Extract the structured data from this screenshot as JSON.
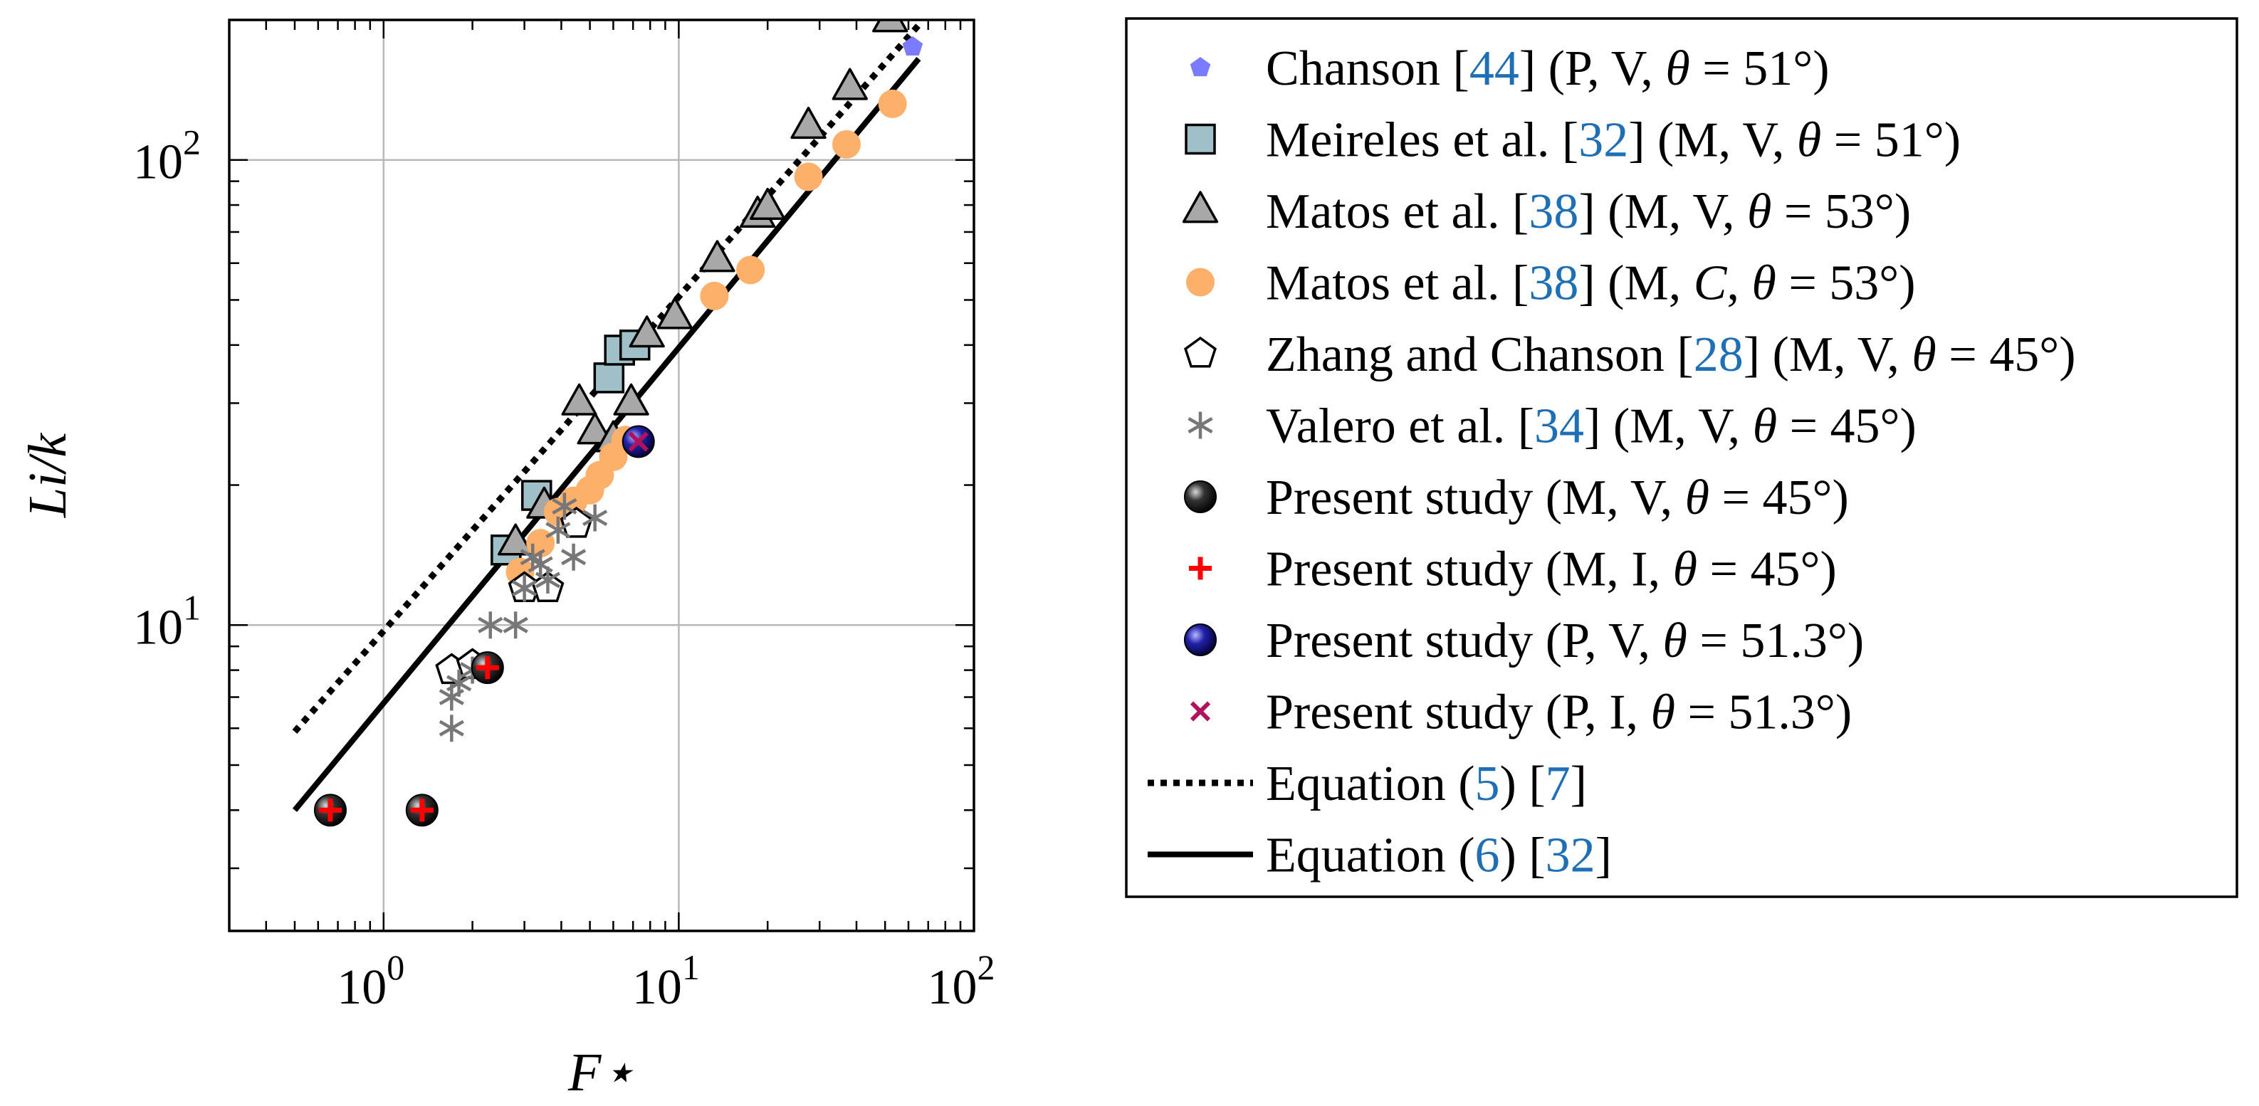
{
  "chart_data": {
    "type": "scatter",
    "x_scale": "log",
    "y_scale": "log",
    "xlim": [
      0.3,
      100
    ],
    "ylim": [
      2.2,
      200
    ],
    "grid": true,
    "legend_position": "right-outside",
    "xlabel": "F⋆",
    "ylabel": "Li/k",
    "x_ticks": [
      {
        "base": "10",
        "exp": "0",
        "value": 1
      },
      {
        "base": "10",
        "exp": "1",
        "value": 10
      },
      {
        "base": "10",
        "exp": "2",
        "value": 100
      }
    ],
    "y_ticks": [
      {
        "base": "10",
        "exp": "1",
        "value": 10
      },
      {
        "base": "10",
        "exp": "2",
        "value": 100
      }
    ],
    "series": [
      {
        "id": "chanson44",
        "marker": "pentagon-filled",
        "color": "#7b7bff",
        "legend": [
          {
            "t": "Chanson ["
          },
          {
            "t": "44",
            "ref": true
          },
          {
            "t": "] (P, V, "
          },
          {
            "t": "θ",
            "i": true
          },
          {
            "t": " = 51°)"
          }
        ],
        "points": [
          [
            62,
            175
          ]
        ]
      },
      {
        "id": "meireles32",
        "marker": "square",
        "color": "#9fc0c8",
        "legend": [
          {
            "t": "Meireles et al. ["
          },
          {
            "t": "32",
            "ref": true
          },
          {
            "t": "] (M, V, "
          },
          {
            "t": "θ",
            "i": true
          },
          {
            "t": " = 51°)"
          }
        ],
        "points": [
          [
            2.6,
            14.5
          ],
          [
            3.3,
            19
          ],
          [
            5.8,
            34
          ],
          [
            6.3,
            39
          ],
          [
            7.1,
            40
          ]
        ]
      },
      {
        "id": "matos38v",
        "marker": "triangle",
        "color": "#a8a8a8",
        "legend": [
          {
            "t": "Matos et al. ["
          },
          {
            "t": "38",
            "ref": true
          },
          {
            "t": "] (M, V, "
          },
          {
            "t": "θ",
            "i": true
          },
          {
            "t": " = 53°)"
          }
        ],
        "points": [
          [
            2.8,
            15
          ],
          [
            3.5,
            18
          ],
          [
            4.6,
            30
          ],
          [
            5.2,
            26
          ],
          [
            6.0,
            25
          ],
          [
            6.9,
            30
          ],
          [
            7.8,
            42
          ],
          [
            9.7,
            46
          ],
          [
            13.5,
            61
          ],
          [
            18.5,
            76
          ],
          [
            20,
            79
          ],
          [
            27.5,
            118
          ],
          [
            38,
            143
          ],
          [
            52,
            200
          ]
        ]
      },
      {
        "id": "matos38c",
        "marker": "circle-filled",
        "color": "#fdb06a",
        "legend": [
          {
            "t": "Matos et al. ["
          },
          {
            "t": "38",
            "ref": true
          },
          {
            "t": "] (M, "
          },
          {
            "t": "C",
            "i": true
          },
          {
            "t": ", "
          },
          {
            "t": "θ",
            "i": true
          },
          {
            "t": " = 53°)"
          }
        ],
        "points": [
          [
            2.9,
            13
          ],
          [
            3.4,
            15
          ],
          [
            3.9,
            17.5
          ],
          [
            4.4,
            18.5
          ],
          [
            5.0,
            19.5
          ],
          [
            5.4,
            21
          ],
          [
            6.0,
            23
          ],
          [
            6.6,
            25
          ],
          [
            13.2,
            51
          ],
          [
            17.5,
            58
          ],
          [
            27.5,
            92
          ],
          [
            37,
            108
          ],
          [
            53,
            132
          ]
        ]
      },
      {
        "id": "zhang28",
        "marker": "pentagon-open",
        "color": "#000000",
        "legend": [
          {
            "t": "Zhang and Chanson ["
          },
          {
            "t": "28",
            "ref": true
          },
          {
            "t": "] (M, V, "
          },
          {
            "t": "θ",
            "i": true
          },
          {
            "t": " = 45°)"
          }
        ],
        "points": [
          [
            1.7,
            8
          ],
          [
            2.0,
            8.2
          ],
          [
            3.0,
            12
          ],
          [
            3.6,
            12
          ],
          [
            4.5,
            16.5
          ]
        ]
      },
      {
        "id": "valero34",
        "marker": "asterisk",
        "color": "#777777",
        "legend": [
          {
            "t": "Valero et al. ["
          },
          {
            "t": "34",
            "ref": true
          },
          {
            "t": "] (M, V, "
          },
          {
            "t": "θ",
            "i": true
          },
          {
            "t": " = 45°)"
          }
        ],
        "points": [
          [
            1.7,
            6.0
          ],
          [
            1.7,
            7.0
          ],
          [
            1.8,
            7.5
          ],
          [
            2.0,
            8.0
          ],
          [
            2.3,
            10
          ],
          [
            2.8,
            10
          ],
          [
            3.0,
            12
          ],
          [
            3.2,
            14
          ],
          [
            3.4,
            13.5
          ],
          [
            3.6,
            12.5
          ],
          [
            3.9,
            16
          ],
          [
            4.1,
            18
          ],
          [
            4.4,
            14
          ],
          [
            5.2,
            17
          ]
        ]
      },
      {
        "id": "present_mv",
        "marker": "ball-black",
        "color": "#000000",
        "legend": [
          {
            "t": "Present study (M, V, "
          },
          {
            "t": "θ",
            "i": true
          },
          {
            "t": " = 45°)"
          }
        ],
        "points": [
          [
            0.66,
            4.0
          ],
          [
            1.35,
            4.0
          ],
          [
            2.25,
            8.1
          ]
        ]
      },
      {
        "id": "present_mi",
        "marker": "plus",
        "color": "#ff0000",
        "legend": [
          {
            "t": "Present study (M, I, "
          },
          {
            "t": "θ",
            "i": true
          },
          {
            "t": " = 45°)"
          }
        ],
        "points": [
          [
            0.66,
            4.0
          ],
          [
            1.35,
            4.0
          ],
          [
            2.25,
            8.1
          ]
        ]
      },
      {
        "id": "present_pv",
        "marker": "ball-blue",
        "color": "#1a1a9a",
        "legend": [
          {
            "t": "Present study (P, V, "
          },
          {
            "t": "θ",
            "i": true
          },
          {
            "t": " = 51.3°)"
          }
        ],
        "points": [
          [
            7.3,
            24.8
          ]
        ]
      },
      {
        "id": "present_pi",
        "marker": "cross",
        "color": "#b0135c",
        "legend": [
          {
            "t": "Present study (P, I, "
          },
          {
            "t": "θ",
            "i": true
          },
          {
            "t": " = 51.3°)"
          }
        ],
        "points": [
          [
            7.3,
            24.8
          ]
        ]
      }
    ],
    "lines": [
      {
        "id": "eq5",
        "style": "dotted",
        "color": "#000000",
        "legend": [
          {
            "t": "Equation ("
          },
          {
            "t": "5",
            "ref": true
          },
          {
            "t": ") ["
          },
          {
            "t": "7",
            "ref": true
          },
          {
            "t": "]"
          }
        ],
        "points": [
          [
            0.5,
            5.9
          ],
          [
            65,
            195
          ]
        ]
      },
      {
        "id": "eq6",
        "style": "solid",
        "color": "#000000",
        "legend": [
          {
            "t": "Equation ("
          },
          {
            "t": "6",
            "ref": true
          },
          {
            "t": ") ["
          },
          {
            "t": "32",
            "ref": true
          },
          {
            "t": "]"
          }
        ],
        "points": [
          [
            0.5,
            4.0
          ],
          [
            65,
            165
          ]
        ]
      }
    ]
  }
}
